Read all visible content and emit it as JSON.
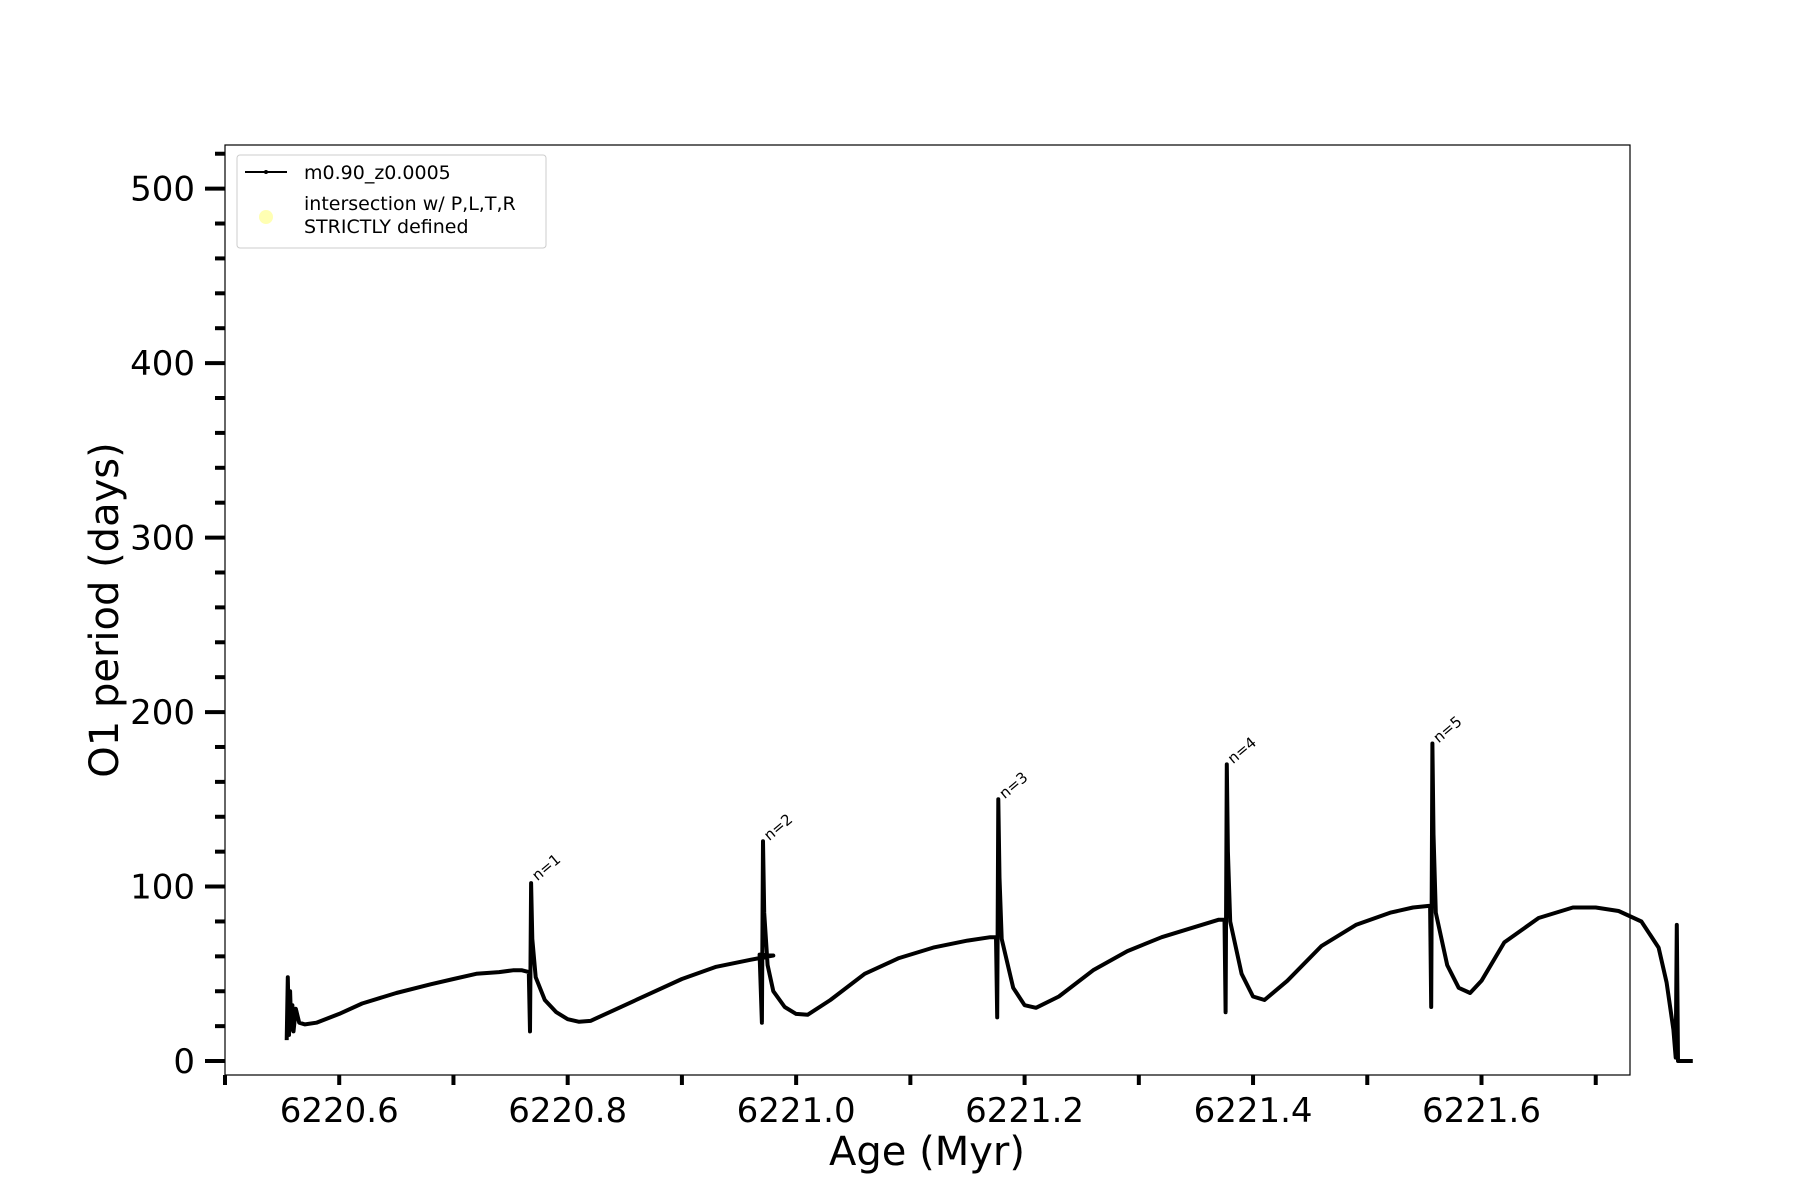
{
  "chart_data": {
    "type": "line",
    "title": "",
    "xlabel": "Age (Myr)",
    "ylabel": "O1 period (days)",
    "xlim": [
      6220.5,
      6221.73
    ],
    "ylim": [
      -8,
      525
    ],
    "xticks": [
      6220.6,
      6220.8,
      6221.0,
      6221.2,
      6221.4,
      6221.6
    ],
    "xtick_labels": [
      "6220.6",
      "6220.8",
      "6221.0",
      "6221.2",
      "6221.4",
      "6221.6"
    ],
    "yticks": [
      0,
      100,
      200,
      300,
      400,
      500
    ],
    "ytick_labels": [
      "0",
      "100",
      "200",
      "300",
      "400",
      "500"
    ],
    "grid": false,
    "legend": {
      "placement": "top-left",
      "entries": [
        {
          "label": "m0.90_z0.0005",
          "style": "line",
          "color": "#000000"
        },
        {
          "label": "intersection w/ P,L,T,R\nSTRICTLY defined",
          "style": "marker",
          "color": "#ffffb3"
        }
      ]
    },
    "series": [
      {
        "name": "m0.90_z0.0005",
        "color": "#000000",
        "points": [
          [
            6220.554,
            12
          ],
          [
            6220.555,
            48
          ],
          [
            6220.556,
            15
          ],
          [
            6220.557,
            40
          ],
          [
            6220.558,
            18
          ],
          [
            6220.559,
            32
          ],
          [
            6220.56,
            17
          ],
          [
            6220.562,
            30
          ],
          [
            6220.565,
            22
          ],
          [
            6220.57,
            21
          ],
          [
            6220.58,
            22
          ],
          [
            6220.6,
            27
          ],
          [
            6220.62,
            33
          ],
          [
            6220.65,
            39
          ],
          [
            6220.68,
            44
          ],
          [
            6220.7,
            47
          ],
          [
            6220.72,
            50
          ],
          [
            6220.74,
            51
          ],
          [
            6220.752,
            52
          ],
          [
            6220.76,
            52
          ],
          [
            6220.766,
            51
          ],
          [
            6220.767,
            17
          ],
          [
            6220.768,
            102
          ],
          [
            6220.769,
            70
          ],
          [
            6220.772,
            48
          ],
          [
            6220.78,
            35
          ],
          [
            6220.79,
            28
          ],
          [
            6220.8,
            24
          ],
          [
            6220.81,
            22.5
          ],
          [
            6220.82,
            23
          ],
          [
            6220.84,
            29
          ],
          [
            6220.87,
            38
          ],
          [
            6220.9,
            47
          ],
          [
            6220.93,
            54
          ],
          [
            6220.96,
            58
          ],
          [
            6220.98,
            60.5
          ],
          [
            6220.968,
            61
          ],
          [
            6220.97,
            22
          ],
          [
            6220.971,
            126
          ],
          [
            6220.972,
            85
          ],
          [
            6220.975,
            55
          ],
          [
            6220.98,
            40
          ],
          [
            6220.99,
            31
          ],
          [
            6221.0,
            27
          ],
          [
            6221.01,
            26.5
          ],
          [
            6221.03,
            35
          ],
          [
            6221.06,
            50
          ],
          [
            6221.09,
            59
          ],
          [
            6221.12,
            65
          ],
          [
            6221.15,
            69
          ],
          [
            6221.17,
            71
          ],
          [
            6221.175,
            71
          ],
          [
            6221.176,
            25
          ],
          [
            6221.177,
            150
          ],
          [
            6221.178,
            105
          ],
          [
            6221.18,
            70
          ],
          [
            6221.19,
            42
          ],
          [
            6221.2,
            32
          ],
          [
            6221.21,
            30.5
          ],
          [
            6221.23,
            37
          ],
          [
            6221.26,
            52
          ],
          [
            6221.29,
            63
          ],
          [
            6221.32,
            71
          ],
          [
            6221.35,
            77
          ],
          [
            6221.37,
            81
          ],
          [
            6221.375,
            81
          ],
          [
            6221.376,
            28
          ],
          [
            6221.377,
            170
          ],
          [
            6221.378,
            120
          ],
          [
            6221.38,
            80
          ],
          [
            6221.39,
            50
          ],
          [
            6221.4,
            37
          ],
          [
            6221.41,
            35
          ],
          [
            6221.43,
            46
          ],
          [
            6221.46,
            66
          ],
          [
            6221.49,
            78
          ],
          [
            6221.52,
            85
          ],
          [
            6221.54,
            88
          ],
          [
            6221.555,
            89
          ],
          [
            6221.556,
            31
          ],
          [
            6221.557,
            182
          ],
          [
            6221.558,
            130
          ],
          [
            6221.56,
            85
          ],
          [
            6221.57,
            55
          ],
          [
            6221.58,
            42
          ],
          [
            6221.59,
            39
          ],
          [
            6221.6,
            46
          ],
          [
            6221.62,
            68
          ],
          [
            6221.65,
            82
          ],
          [
            6221.68,
            88
          ],
          [
            6221.7,
            88
          ],
          [
            6221.72,
            86
          ],
          [
            6221.74,
            80
          ],
          [
            6221.755,
            65
          ],
          [
            6221.762,
            45
          ],
          [
            6221.768,
            18
          ],
          [
            6221.77,
            2
          ],
          [
            6221.771,
            78
          ],
          [
            6221.772,
            0
          ],
          [
            6221.785,
            0
          ]
        ]
      }
    ],
    "annotations": [
      {
        "text": "n=1",
        "x": 6220.77,
        "y": 103
      },
      {
        "text": "n=2",
        "x": 6220.973,
        "y": 126
      },
      {
        "text": "n=3",
        "x": 6221.179,
        "y": 150
      },
      {
        "text": "n=4",
        "x": 6221.379,
        "y": 170
      },
      {
        "text": "n=5",
        "x": 6221.559,
        "y": 182
      }
    ]
  }
}
